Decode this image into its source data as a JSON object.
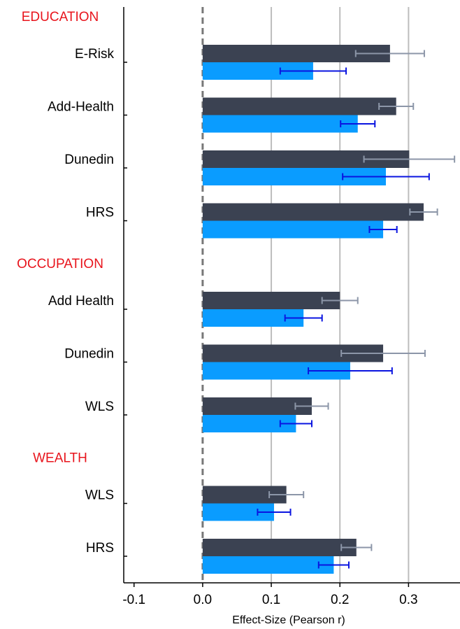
{
  "chart_data": {
    "type": "grouped-hbar-error",
    "x_label": "Effect-Size (Pearson r)",
    "xlim": [
      -0.115,
      0.375
    ],
    "xticks": [
      -0.1,
      {
        "value": 0,
        "label": "0.0"
      },
      0.1,
      0.2,
      0.3
    ],
    "grid": true,
    "zero_line": true,
    "series_colors": [
      {
        "color": "#3b4252",
        "error_color": "#8c96a8"
      },
      {
        "color": "#0a9cff",
        "error_color": "#0a14e0"
      }
    ],
    "groups": [
      {
        "label": "EDUCATION",
        "categories": [
          "E-Risk",
          "Add-Health",
          "Dunedin",
          "HRS"
        ],
        "series": [
          {
            "values": [
              0.273,
              0.282,
              0.301,
              0.322
            ],
            "errors": [
              0.05,
              0.025,
              0.066,
              0.02
            ]
          },
          {
            "values": [
              0.161,
              0.226,
              0.267,
              0.263
            ],
            "errors": [
              0.048,
              0.025,
              0.063,
              0.02
            ]
          }
        ]
      },
      {
        "label": "OCCUPATION",
        "categories": [
          "Add Health",
          "Dunedin",
          "WLS"
        ],
        "series": [
          {
            "values": [
              0.2,
              0.263,
              0.159
            ],
            "errors": [
              0.026,
              0.061,
              0.024
            ]
          },
          {
            "values": [
              0.147,
              0.215,
              0.136
            ],
            "errors": [
              0.027,
              0.061,
              0.023
            ]
          }
        ]
      },
      {
        "label": "WEALTH",
        "categories": [
          "WLS",
          "HRS"
        ],
        "series": [
          {
            "values": [
              0.122,
              0.224
            ],
            "errors": [
              0.025,
              0.022
            ]
          },
          {
            "values": [
              0.104,
              0.191
            ],
            "errors": [
              0.024,
              0.022
            ]
          }
        ]
      }
    ]
  }
}
